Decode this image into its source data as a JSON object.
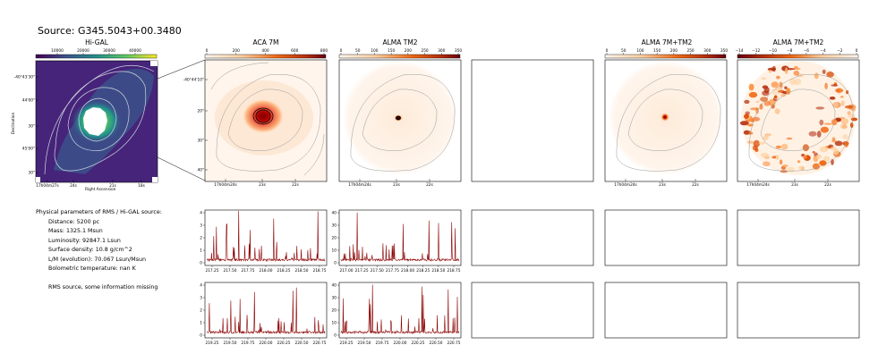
{
  "source": {
    "title": "Source: G345.5043+00.3480"
  },
  "panels": {
    "higal": {
      "title": "Hi-GAL",
      "colorbar_ticks": [
        "10000",
        "20000",
        "30000",
        "40000"
      ],
      "dec_label": "Declination",
      "ra_label": "Right Ascension",
      "dec_ticks": [
        "-40°43'30\"",
        "44'00\"",
        "30\"",
        "45'00\"",
        "30\""
      ],
      "ra_ticks": [
        "17h04m27s",
        "24s",
        "21s",
        "18s"
      ]
    },
    "aca7m": {
      "title": "ACA 7M",
      "colorbar_ticks": [
        "0",
        "200",
        "400",
        "600",
        "800"
      ],
      "dec_ticks": [
        "-40°44'10\"",
        "20\"",
        "30\"",
        "40\""
      ],
      "ra_ticks": [
        "17h04m24s",
        "23s",
        "22s"
      ]
    },
    "almatm2": {
      "title": "ALMA TM2",
      "colorbar_ticks": [
        "0",
        "50",
        "100",
        "150",
        "200",
        "250",
        "300",
        "350"
      ],
      "ra_ticks": [
        "17h04m24s",
        "23s",
        "22s"
      ]
    },
    "alma7mtm2": {
      "title": "ALMA 7M+TM2",
      "colorbar_ticks": [
        "0",
        "50",
        "100",
        "150",
        "200",
        "250",
        "300",
        "350"
      ],
      "ra_ticks": [
        "17h04m24s",
        "23s",
        "22s"
      ]
    },
    "alma7mtm2neg": {
      "title": "ALMA 7M+TM2",
      "colorbar_ticks": [
        "−14",
        "−12",
        "−10",
        "−8",
        "−6",
        "−4",
        "−2",
        "0"
      ],
      "ra_ticks": [
        "17h04m24s",
        "23s",
        "22s"
      ]
    }
  },
  "properties": {
    "header": "Physical parameters of RMS / Hi-GAL source:",
    "distance": "Distance: 5200 pc",
    "mass": "Mass: 1325.1 Msun",
    "luminosity": "Luminosity: 92847.1 Lsun",
    "surface_density": "Surface density: 10.8 g/cm^2",
    "lm": "L/M (evolution): 70.067 Lsun/Msun",
    "tbol": "Bolometric temperature: nan K",
    "note": "RMS source, some information missing"
  },
  "spectra": {
    "aca_spw1_xticks": [
      "217.25",
      "217.50",
      "217.75",
      "218.00",
      "218.25",
      "218.50",
      "218.75"
    ],
    "tm2_spw1_xticks": [
      "217.00",
      "217.25",
      "217.50",
      "217.75",
      "218.00",
      "218.25",
      "218.50",
      "218.75"
    ],
    "aca_spw2_xticks": [
      "219.25",
      "219.50",
      "219.75",
      "220.00",
      "220.25",
      "220.50",
      "220.75"
    ],
    "tm2_spw2_xticks": [
      "219.25",
      "219.50",
      "219.75",
      "220.00",
      "220.25",
      "220.50",
      "220.75"
    ],
    "aca_yticks": [
      "0",
      "1",
      "2",
      "3",
      "4"
    ],
    "tm2_yticks": [
      "0",
      "10",
      "20",
      "30",
      "40"
    ],
    "line_color": "#8b0000"
  },
  "colors": {
    "spectrum": "#8b0000",
    "contour": "#9a9a9a"
  }
}
